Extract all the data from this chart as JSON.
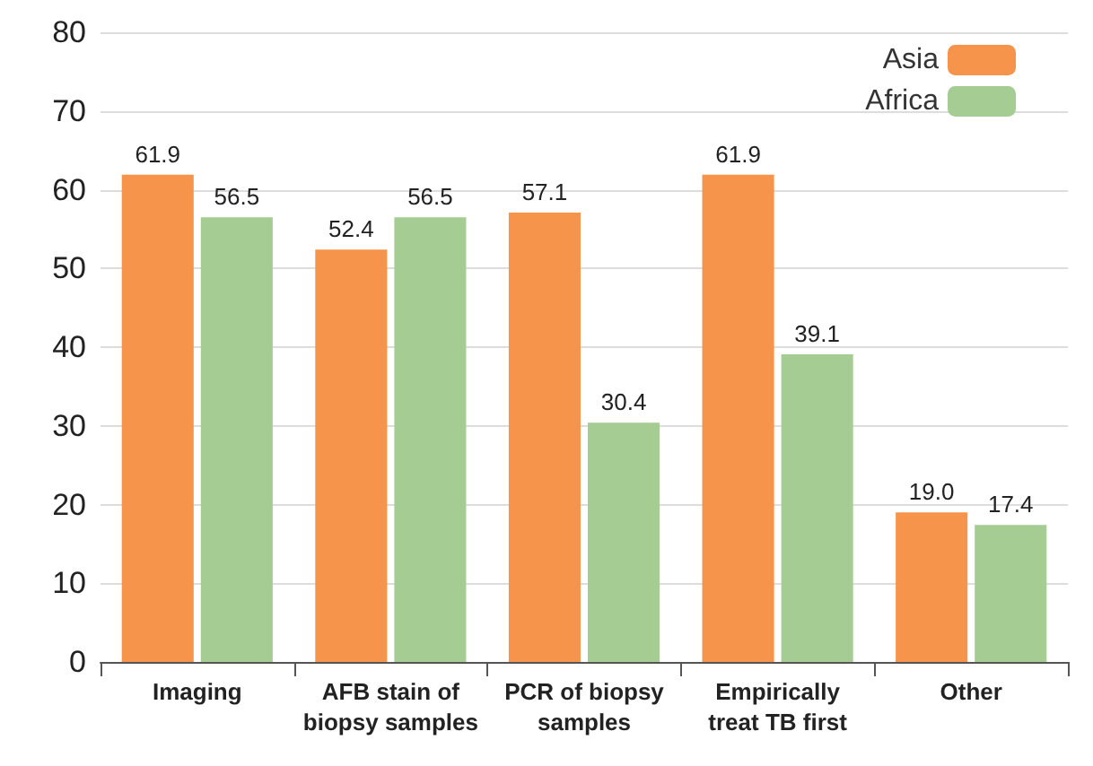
{
  "chart_data": {
    "type": "bar",
    "categories": [
      "Imaging",
      "AFB stain of\nbiopsy samples",
      "PCR of biopsy\nsamples",
      "Empirically\ntreat TB first",
      "Other"
    ],
    "series": [
      {
        "name": "Asia",
        "color": "#f5944a",
        "values": [
          61.9,
          52.4,
          57.1,
          61.9,
          19.0
        ],
        "value_labels": [
          "61.9",
          "52.4",
          "57.1",
          "61.9",
          "19.0"
        ]
      },
      {
        "name": "Africa",
        "color": "#a5cd93",
        "values": [
          56.5,
          56.5,
          30.4,
          39.1,
          17.4
        ],
        "value_labels": [
          "56.5",
          "56.5",
          "30.4",
          "39.1",
          "17.4"
        ]
      }
    ],
    "ylim": [
      0,
      80
    ],
    "yticks": [
      0,
      10,
      20,
      30,
      40,
      50,
      60,
      70,
      80
    ],
    "grid": "y",
    "legend": "top right"
  }
}
